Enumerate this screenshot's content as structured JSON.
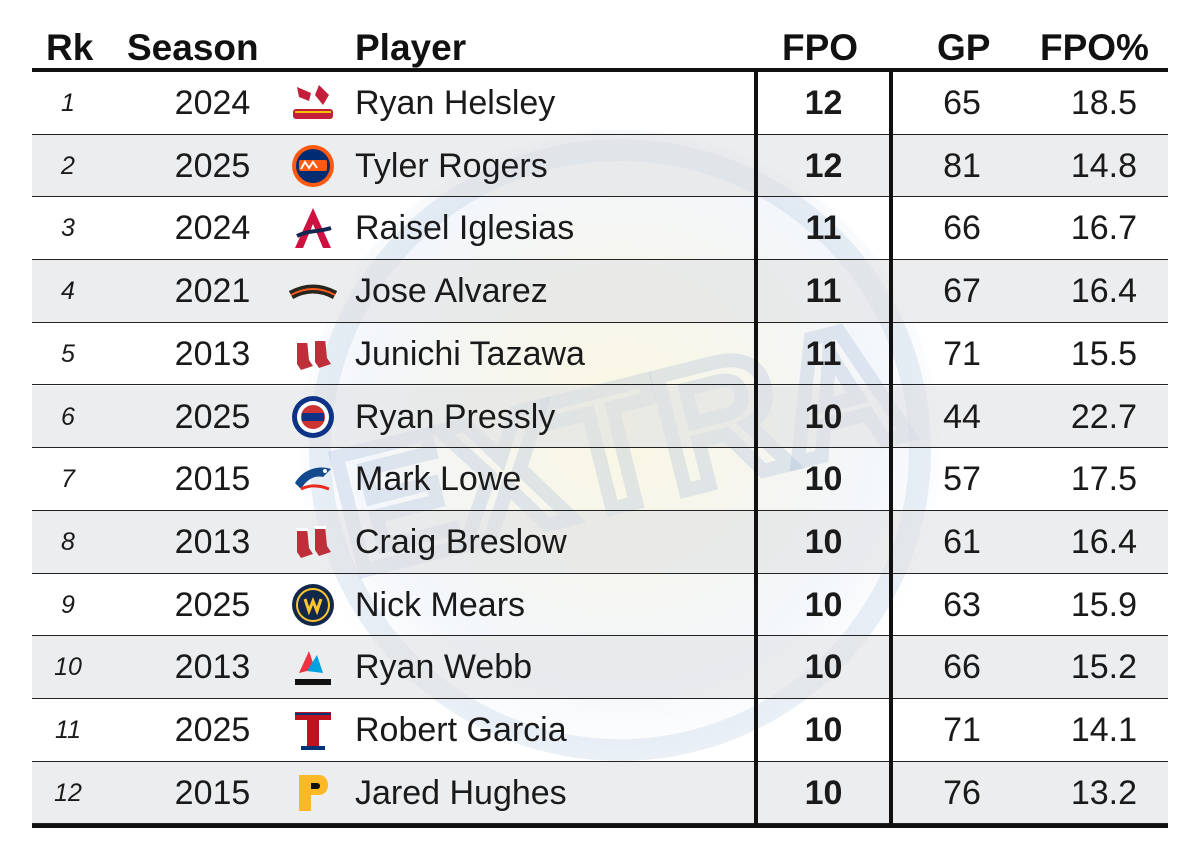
{
  "headers": {
    "rk": "Rk",
    "season": "Season",
    "player": "Player",
    "fpo": "FPO",
    "gp": "GP",
    "fpo_pct": "FPO%"
  },
  "rows": [
    {
      "rk": "1",
      "season": "2024",
      "team_logo": "cardinals-logo",
      "player": "Ryan Helsley",
      "fpo": "12",
      "gp": "65",
      "fpo_pct": "18.5"
    },
    {
      "rk": "2",
      "season": "2025",
      "team_logo": "mets-logo",
      "player": "Tyler Rogers",
      "fpo": "12",
      "gp": "81",
      "fpo_pct": "14.8"
    },
    {
      "rk": "3",
      "season": "2024",
      "team_logo": "braves-logo",
      "player": "Raisel Iglesias",
      "fpo": "11",
      "gp": "66",
      "fpo_pct": "16.7"
    },
    {
      "rk": "4",
      "season": "2021",
      "team_logo": "giants-logo",
      "player": "Jose Alvarez",
      "fpo": "11",
      "gp": "67",
      "fpo_pct": "16.4"
    },
    {
      "rk": "5",
      "season": "2013",
      "team_logo": "red-sox-logo",
      "player": "Junichi Tazawa",
      "fpo": "11",
      "gp": "71",
      "fpo_pct": "15.5"
    },
    {
      "rk": "6",
      "season": "2025",
      "team_logo": "cubs-logo",
      "player": "Ryan Pressly",
      "fpo": "10",
      "gp": "44",
      "fpo_pct": "22.7"
    },
    {
      "rk": "7",
      "season": "2015",
      "team_logo": "blue-jays-logo",
      "player": "Mark Lowe",
      "fpo": "10",
      "gp": "57",
      "fpo_pct": "17.5"
    },
    {
      "rk": "8",
      "season": "2013",
      "team_logo": "red-sox-logo",
      "player": "Craig Breslow",
      "fpo": "10",
      "gp": "61",
      "fpo_pct": "16.4"
    },
    {
      "rk": "9",
      "season": "2025",
      "team_logo": "brewers-logo",
      "player": "Nick Mears",
      "fpo": "10",
      "gp": "63",
      "fpo_pct": "15.9"
    },
    {
      "rk": "10",
      "season": "2013",
      "team_logo": "marlins-logo",
      "player": "Ryan Webb",
      "fpo": "10",
      "gp": "66",
      "fpo_pct": "15.2"
    },
    {
      "rk": "11",
      "season": "2025",
      "team_logo": "rangers-logo",
      "player": "Robert Garcia",
      "fpo": "10",
      "gp": "71",
      "fpo_pct": "14.1"
    },
    {
      "rk": "12",
      "season": "2015",
      "team_logo": "pirates-logo",
      "player": "Jared Hughes",
      "fpo": "10",
      "gp": "76",
      "fpo_pct": "13.2"
    }
  ],
  "watermark": {
    "text": "EXTRA"
  },
  "colors": {
    "rule": "#111111",
    "alt_row": "#e1e2e4",
    "text": "#1a1a1a"
  }
}
